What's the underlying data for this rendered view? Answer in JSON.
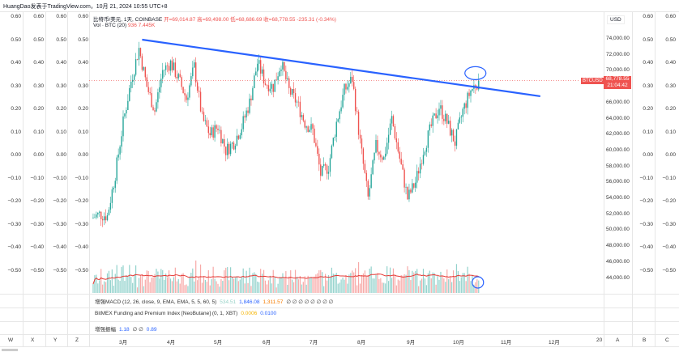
{
  "header": {
    "title": "HuangDao发表于TradingView.com，10月 21, 2024 10:55 UTC+8"
  },
  "legend": {
    "symbol": "比特币/美元, 1天, COINBASE",
    "open": "开=69,014.87",
    "high": "高=69,498.00",
    "low": "低=68,686.69",
    "close": "收=68,778.55",
    "change": "-235.31 (-0.34%)",
    "volume_label": "Vol · BTC (20)",
    "volume_value": "936",
    "volume_ma": "7.445K"
  },
  "side_scale_labels": [
    "0.60",
    "0.50",
    "0.40",
    "0.30",
    "0.20",
    "0.10",
    "0.00",
    "−0.10",
    "−0.20",
    "−0.30",
    "−0.40",
    "−0.50"
  ],
  "price_axis": {
    "currency": "USD",
    "labels": [
      "74,000.00",
      "72,000.00",
      "70,000.00",
      "66,000.00",
      "64,000.00",
      "62,000.00",
      "60,000.00",
      "58,000.00",
      "56,000.00",
      "54,000.00",
      "52,000.00",
      "50,000.00",
      "48,000.00",
      "46,000.00",
      "44,000.00"
    ],
    "current_symbol": "BTCUSD",
    "current_price": "68,778.55",
    "countdown": "21:04:42"
  },
  "indicators": [
    {
      "name": "增强MACD (12, 26, close, 9, EMA, EMA, 5, 5, 60, 5)",
      "values": [
        {
          "v": "534.51",
          "c": "#9ad3c8"
        },
        {
          "v": "1,846.08",
          "c": "#2962ff"
        },
        {
          "v": "1,311.57",
          "c": "#f57c00"
        },
        {
          "v": "∅ ∅ ∅ ∅ ∅ ∅ ∅ ∅",
          "c": "#333"
        }
      ]
    },
    {
      "name": "BitMEX Funding and Premium Index [NeoButane] (0, 1, XBT)",
      "values": [
        {
          "v": "0.0006",
          "c": "#f5b400"
        },
        {
          "v": "0.0100",
          "c": "#2962ff"
        }
      ]
    },
    {
      "name": "增强振幅",
      "values": [
        {
          "v": "1.18",
          "c": "#2962ff"
        },
        {
          "v": "∅ ∅",
          "c": "#333"
        },
        {
          "v": "0.89",
          "c": "#2962ff"
        }
      ]
    }
  ],
  "time_axis": {
    "left_letters": [
      "W",
      "X",
      "Y",
      "Z"
    ],
    "months": [
      "3月",
      "4月",
      "5月",
      "6月",
      "7月",
      "8月",
      "9月",
      "10月",
      "11月",
      "12月",
      "20"
    ],
    "right_letters": [
      "A",
      "B",
      "C"
    ]
  },
  "colors": {
    "up": "#26a69a",
    "down": "#ef5350",
    "trendline": "#2962ff",
    "volume_ma": "#e53935"
  },
  "chart_data": {
    "type": "candlestick",
    "symbol": "BTCUSD",
    "interval": "1D",
    "date_range": [
      "2024-02-10",
      "2024-10-21"
    ],
    "sample_step_days": 5,
    "closes": [
      51500,
      52000,
      51800,
      57000,
      63500,
      68700,
      72800,
      68000,
      65000,
      70000,
      71000,
      69000,
      66500,
      70500,
      64000,
      62000,
      63000,
      60000,
      61000,
      63000,
      66000,
      71000,
      68500,
      68000,
      71000,
      67500,
      66000,
      63500,
      62500,
      57000,
      58000,
      63500,
      67500,
      69000,
      61000,
      54000,
      60500,
      59000,
      64000,
      59000,
      54000,
      56000,
      60000,
      63000,
      65500,
      63500,
      61000,
      65000,
      67500,
      68778
    ],
    "price_range": [
      43000,
      75000
    ],
    "trendline": [
      {
        "date": "2024-03-13",
        "price": 73900
      },
      {
        "date": "2024-11-20",
        "price": 66800
      }
    ],
    "annotations": [
      "circle near latest high",
      "circle on latest volume"
    ]
  }
}
